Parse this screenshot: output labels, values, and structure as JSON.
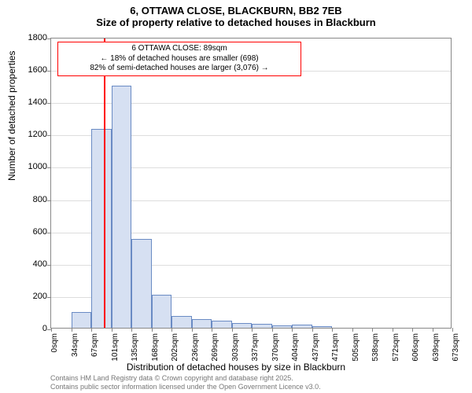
{
  "title": "6, OTTAWA CLOSE, BLACKBURN, BB2 7EB",
  "subtitle": "Size of property relative to detached houses in Blackburn",
  "ylabel": "Number of detached properties",
  "xlabel": "Distribution of detached houses by size in Blackburn",
  "footnote_line1": "Contains HM Land Registry data © Crown copyright and database right 2025.",
  "footnote_line2": "Contains public sector information licensed under the Open Government Licence v3.0.",
  "chart": {
    "type": "histogram",
    "ylim": [
      0,
      1800
    ],
    "ytick_step": 200,
    "yticks": [
      0,
      200,
      400,
      600,
      800,
      1000,
      1200,
      1400,
      1600,
      1800
    ],
    "xticks": [
      "0sqm",
      "34sqm",
      "67sqm",
      "101sqm",
      "135sqm",
      "168sqm",
      "202sqm",
      "236sqm",
      "269sqm",
      "303sqm",
      "337sqm",
      "370sqm",
      "404sqm",
      "437sqm",
      "471sqm",
      "505sqm",
      "538sqm",
      "572sqm",
      "606sqm",
      "639sqm",
      "673sqm"
    ],
    "bar_fill": "#d6e0f2",
    "bar_stroke": "#6a8bc4",
    "grid_color": "#dddddd",
    "axis_color": "#888888",
    "background": "#ffffff",
    "values": [
      0,
      95,
      1230,
      1500,
      550,
      205,
      75,
      55,
      45,
      30,
      22,
      15,
      20,
      10,
      0,
      0,
      0,
      0,
      0,
      0
    ],
    "reference_line": {
      "x_sqm": 89,
      "color": "#ff0000"
    },
    "annotation": {
      "border_color": "#ff0000",
      "line1": "6 OTTAWA CLOSE: 89sqm",
      "line2": "← 18% of detached houses are smaller (698)",
      "line3": "82% of semi-detached houses are larger (3,076) →"
    }
  }
}
